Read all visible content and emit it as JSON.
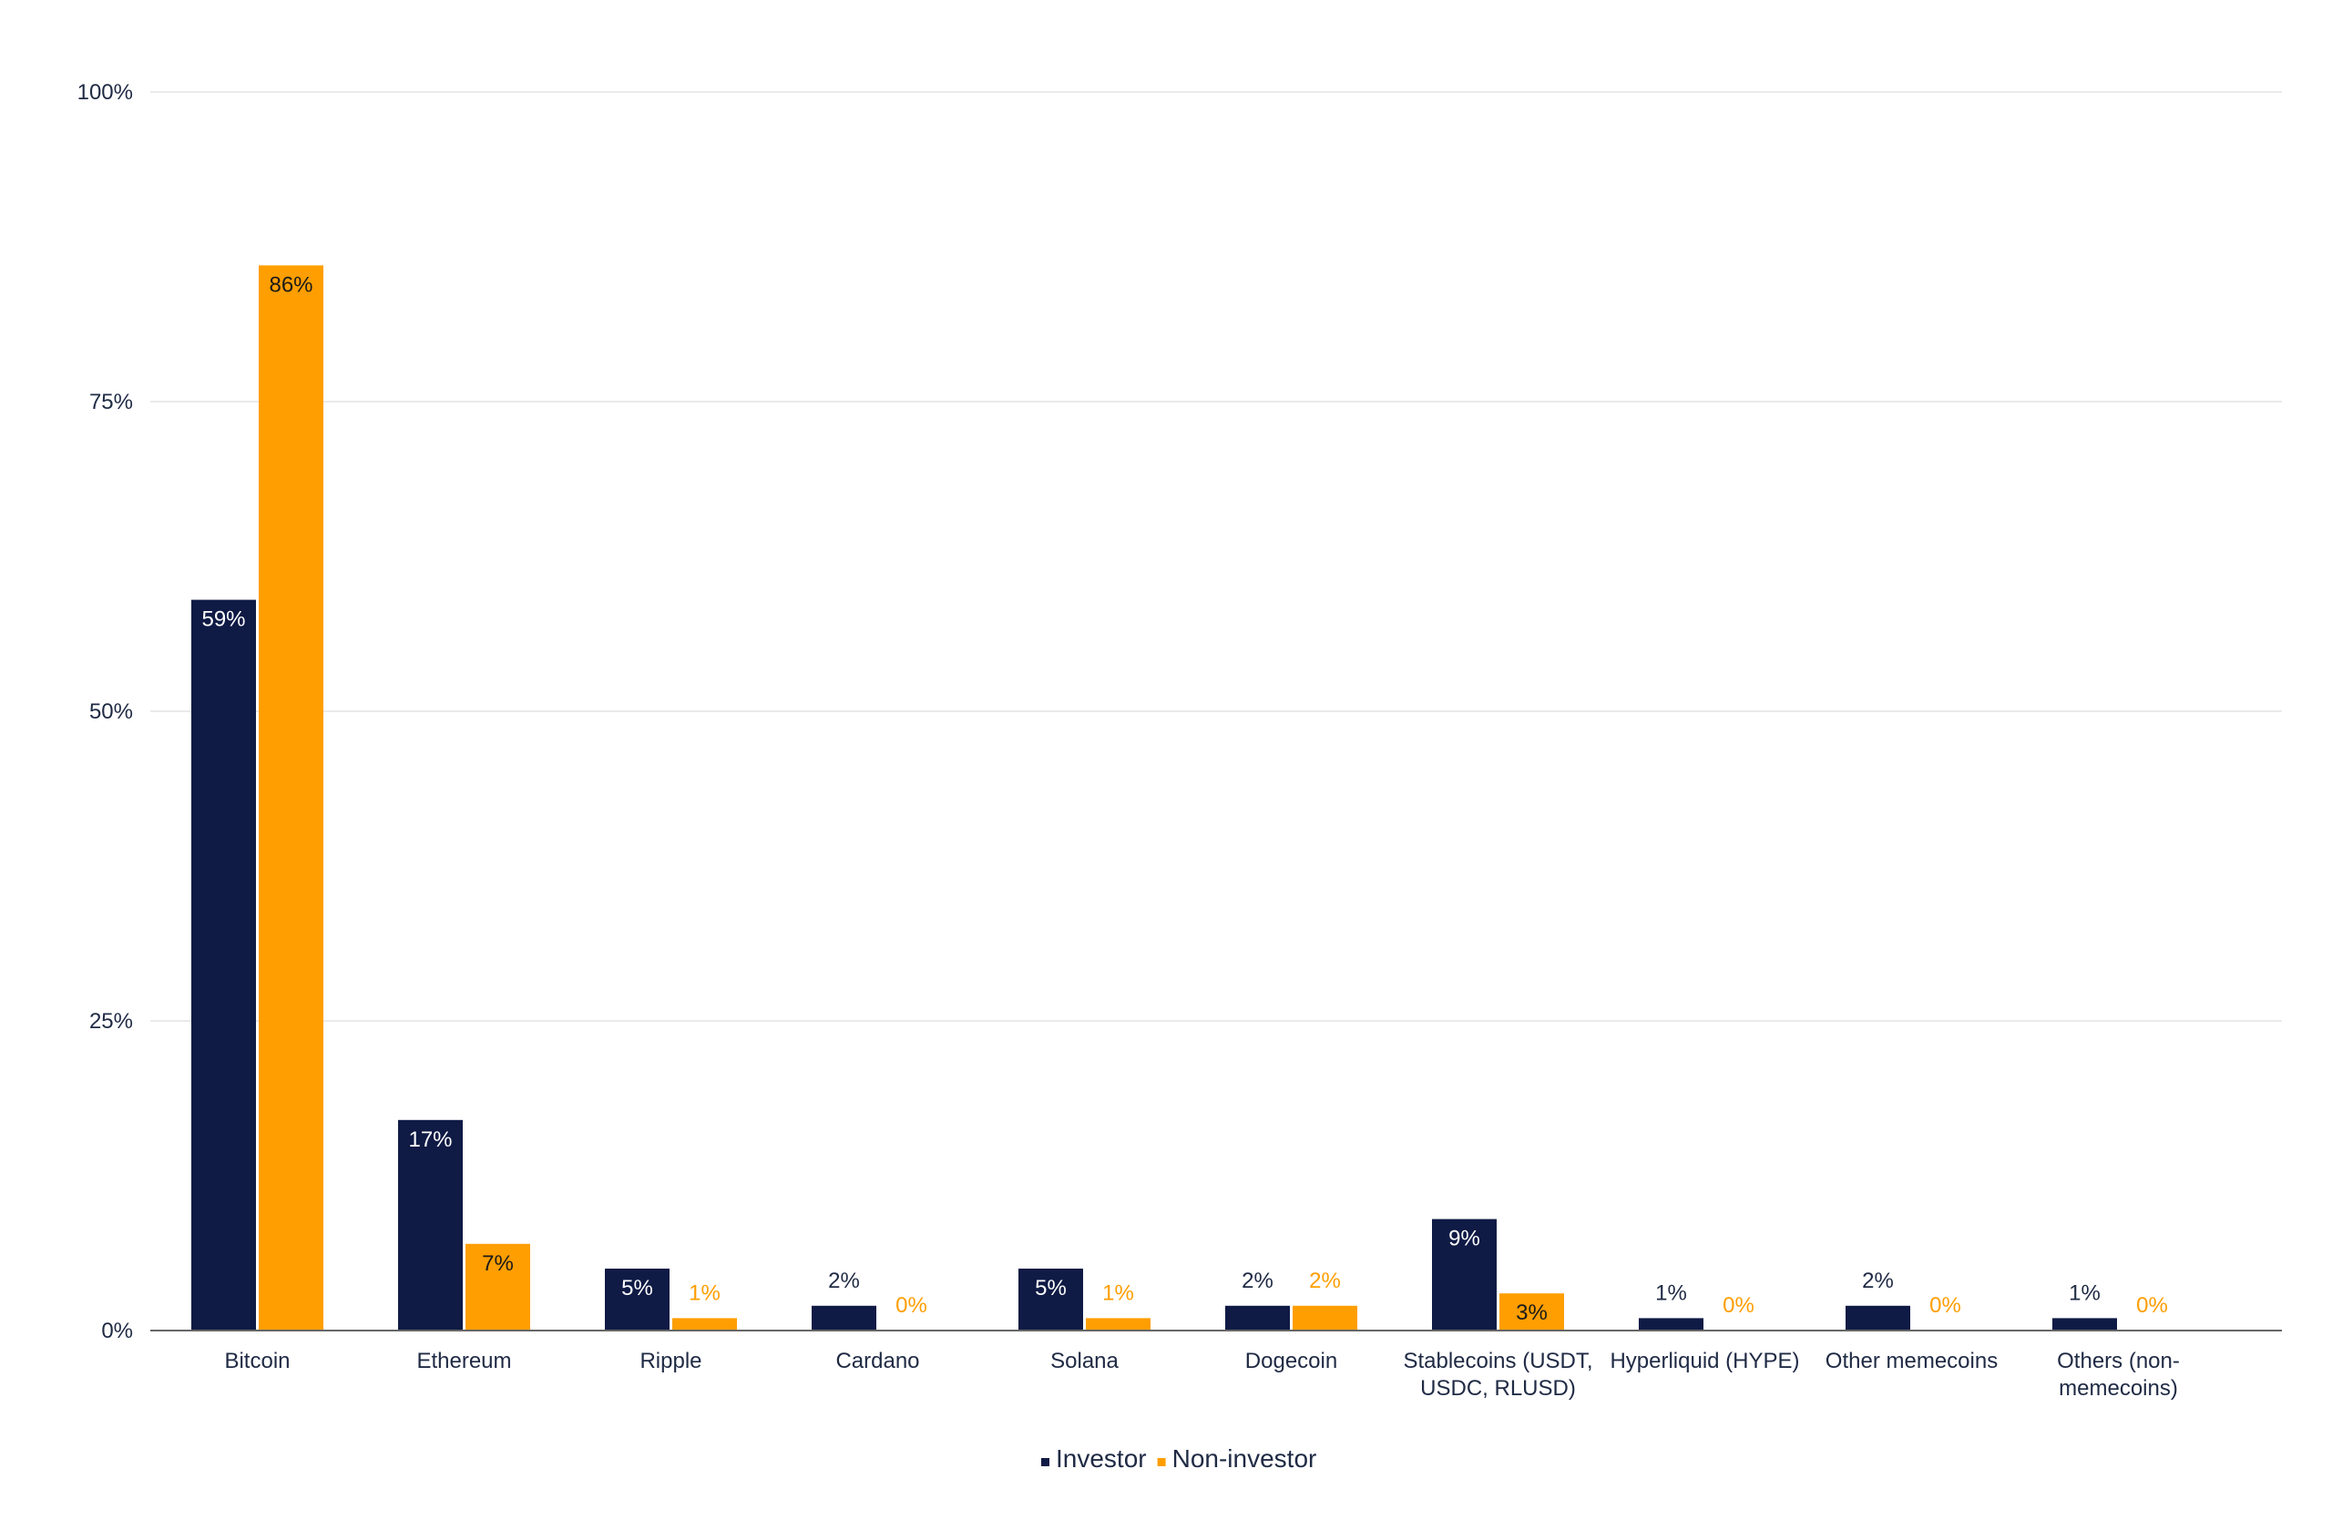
{
  "chart_data": {
    "type": "bar",
    "categories": [
      [
        "Bitcoin"
      ],
      [
        "Ethereum"
      ],
      [
        "Ripple"
      ],
      [
        "Cardano"
      ],
      [
        "Solana"
      ],
      [
        "Dogecoin"
      ],
      [
        "Stablecoins (USDT,",
        "USDC, RLUSD)"
      ],
      [
        "Hyperliquid (HYPE)"
      ],
      [
        "Other memecoins"
      ],
      [
        "Others (non-",
        "memecoins)"
      ]
    ],
    "series": [
      {
        "name": "Investor",
        "color": "#0f1a45",
        "values": [
          59,
          17,
          5,
          2,
          5,
          2,
          9,
          1,
          2,
          1
        ],
        "labels": [
          "59%",
          "17%",
          "5%",
          "2%",
          "5%",
          "2%",
          "9%",
          "1%",
          "2%",
          "1%"
        ]
      },
      {
        "name": "Non-investor",
        "color": "#ff9e00",
        "values": [
          86,
          7,
          1,
          0,
          1,
          2,
          3,
          0,
          0,
          0
        ],
        "labels": [
          "86%",
          "7%",
          "1%",
          "0%",
          "1%",
          "2%",
          "3%",
          "0%",
          "0%",
          "0%"
        ]
      }
    ],
    "y_ticks": [
      0,
      25,
      50,
      75,
      100
    ],
    "y_tick_labels": [
      "0%",
      "25%",
      "50%",
      "75%",
      "100%"
    ],
    "ylim": [
      0,
      100
    ],
    "grid": true,
    "legend_position": "bottom-center"
  }
}
